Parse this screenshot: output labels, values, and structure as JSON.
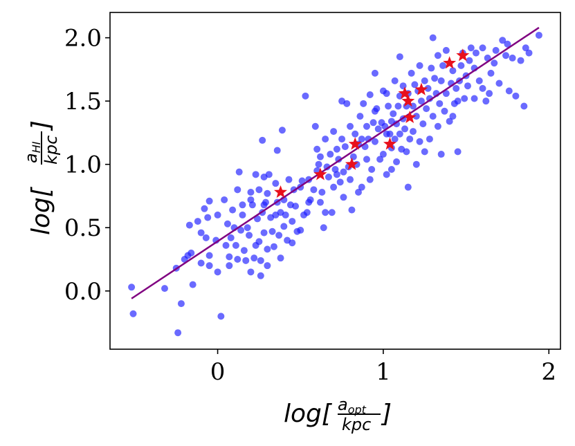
{
  "chart_data": {
    "type": "scatter",
    "title": "",
    "xlabel": {
      "prefix": "log[",
      "numerator": "a",
      "numerator_sub": "opt",
      "denominator": "kpc",
      "suffix": "]"
    },
    "ylabel": {
      "prefix": "log[",
      "numerator": "a",
      "numerator_sub": "HI",
      "denominator": "kpc",
      "suffix": "]"
    },
    "xlim": [
      -0.65,
      2.07
    ],
    "ylim": [
      -0.46,
      2.2
    ],
    "xticks": [
      0,
      1,
      2
    ],
    "xtick_labels": [
      "0",
      "1",
      "2"
    ],
    "yticks": [
      0.0,
      0.5,
      1.0,
      1.5,
      2.0
    ],
    "ytick_labels": [
      "0.0",
      "0.5",
      "1.0",
      "1.5",
      "2.0"
    ],
    "grid": false,
    "fit_line": {
      "color": "#800080",
      "x": [
        -0.52,
        1.94
      ],
      "y": [
        -0.06,
        2.08
      ]
    },
    "series": [
      {
        "marker": "circle",
        "color": "#1a1aff",
        "points": [
          [
            -0.52,
            0.03
          ],
          [
            -0.51,
            -0.18
          ],
          [
            -0.32,
            0.02
          ],
          [
            -0.25,
            0.18
          ],
          [
            -0.24,
            -0.33
          ],
          [
            -0.22,
            -0.1
          ],
          [
            -0.2,
            0.25
          ],
          [
            -0.18,
            0.28
          ],
          [
            -0.17,
            0.52
          ],
          [
            -0.16,
            0.3
          ],
          [
            -0.15,
            0.05
          ],
          [
            -0.12,
            0.55
          ],
          [
            -0.1,
            0.46
          ],
          [
            -0.08,
            0.65
          ],
          [
            -0.07,
            0.42
          ],
          [
            -0.06,
            0.58
          ],
          [
            -0.05,
            0.28
          ],
          [
            -0.05,
            0.71
          ],
          [
            -0.05,
            0.2
          ],
          [
            0.0,
            0.15
          ],
          [
            0.0,
            0.6
          ],
          [
            0.02,
            -0.2
          ],
          [
            0.04,
            0.72
          ],
          [
            0.05,
            0.36
          ],
          [
            0.06,
            0.53
          ],
          [
            0.07,
            0.27
          ],
          [
            0.07,
            0.2
          ],
          [
            0.08,
            0.42
          ],
          [
            0.09,
            0.64
          ],
          [
            0.1,
            0.5
          ],
          [
            0.11,
            0.36
          ],
          [
            0.12,
            0.8
          ],
          [
            0.12,
            0.25
          ],
          [
            0.13,
            0.94
          ],
          [
            0.14,
            0.48
          ],
          [
            0.15,
            0.6
          ],
          [
            0.16,
            0.32
          ],
          [
            0.17,
            0.24
          ],
          [
            0.18,
            0.5
          ],
          [
            0.19,
            0.44
          ],
          [
            0.2,
            0.72
          ],
          [
            0.2,
            0.15
          ],
          [
            0.21,
            0.68
          ],
          [
            0.22,
            0.26
          ],
          [
            0.23,
            0.92
          ],
          [
            0.23,
            0.36
          ],
          [
            0.24,
            0.57
          ],
          [
            0.25,
            0.8
          ],
          [
            0.25,
            0.39
          ],
          [
            0.26,
            0.24
          ],
          [
            0.26,
            0.12
          ],
          [
            0.27,
            1.19
          ],
          [
            0.27,
            0.62
          ],
          [
            0.28,
            0.9
          ],
          [
            0.28,
            0.46
          ],
          [
            0.29,
            0.7
          ],
          [
            0.3,
            0.33
          ],
          [
            0.3,
            0.77
          ],
          [
            0.31,
            0.92
          ],
          [
            0.32,
            0.58
          ],
          [
            0.33,
            0.47
          ],
          [
            0.34,
            0.35
          ],
          [
            0.35,
            0.6
          ],
          [
            0.35,
            0.85
          ],
          [
            0.36,
            0.7
          ],
          [
            0.36,
            1.11
          ],
          [
            0.37,
            0.44
          ],
          [
            0.38,
            0.26
          ],
          [
            0.39,
            1.27
          ],
          [
            0.4,
            0.51
          ],
          [
            0.4,
            0.72
          ],
          [
            0.41,
            0.6
          ],
          [
            0.42,
            0.4
          ],
          [
            0.43,
            0.88
          ],
          [
            0.44,
            0.68
          ],
          [
            0.45,
            0.55
          ],
          [
            0.46,
            0.8
          ],
          [
            0.47,
            0.67
          ],
          [
            0.48,
            0.47
          ],
          [
            0.5,
            0.82
          ],
          [
            0.51,
            0.87
          ],
          [
            0.52,
            0.6
          ],
          [
            0.53,
            1.54
          ],
          [
            0.54,
            0.62
          ],
          [
            0.55,
            0.88
          ],
          [
            0.56,
            0.72
          ],
          [
            0.58,
            0.8
          ],
          [
            0.59,
            1.3
          ],
          [
            0.6,
            0.95
          ],
          [
            0.61,
            1.0
          ],
          [
            0.62,
            1.06
          ],
          [
            0.62,
            0.7
          ],
          [
            0.63,
            0.78
          ],
          [
            0.64,
            0.5
          ],
          [
            0.65,
            1.2
          ],
          [
            0.66,
            0.98
          ],
          [
            0.67,
            0.9
          ],
          [
            0.68,
            1.08
          ],
          [
            0.69,
            0.62
          ],
          [
            0.7,
            1.26
          ],
          [
            0.7,
            0.82
          ],
          [
            0.71,
            0.96
          ],
          [
            0.72,
            1.12
          ],
          [
            0.73,
            1.04
          ],
          [
            0.74,
            0.86
          ],
          [
            0.75,
            1.2
          ],
          [
            0.76,
            0.74
          ],
          [
            0.76,
            0.94
          ],
          [
            0.77,
            1.14
          ],
          [
            0.78,
            1.48
          ],
          [
            0.79,
            0.98
          ],
          [
            0.8,
            0.88
          ],
          [
            0.8,
            1.3
          ],
          [
            0.81,
            0.64
          ],
          [
            0.82,
            1.06
          ],
          [
            0.83,
            1.24
          ],
          [
            0.84,
            1.0
          ],
          [
            0.85,
            1.16
          ],
          [
            0.86,
            1.38
          ],
          [
            0.87,
            0.82
          ],
          [
            0.88,
            1.48
          ],
          [
            0.89,
            1.14
          ],
          [
            0.9,
            1.3
          ],
          [
            0.9,
            1.04
          ],
          [
            0.91,
            1.2
          ],
          [
            0.92,
            1.55
          ],
          [
            0.93,
            0.96
          ],
          [
            0.94,
            1.33
          ],
          [
            0.95,
            1.42
          ],
          [
            0.95,
            1.18
          ],
          [
            0.96,
            1.44
          ],
          [
            0.97,
            1.28
          ],
          [
            0.98,
            1.04
          ],
          [
            0.99,
            1.33
          ],
          [
            1.0,
            1.08
          ],
          [
            1.0,
            1.58
          ],
          [
            1.01,
            1.3
          ],
          [
            1.02,
            1.24
          ],
          [
            1.02,
            0.92
          ],
          [
            1.03,
            1.46
          ],
          [
            1.04,
            1.24
          ],
          [
            1.05,
            1.34
          ],
          [
            1.05,
            1.13
          ],
          [
            1.06,
            1.4
          ],
          [
            1.07,
            1.66
          ],
          [
            1.07,
            1.2
          ],
          [
            1.08,
            1.32
          ],
          [
            1.08,
            1.02
          ],
          [
            1.09,
            1.46
          ],
          [
            1.1,
            1.24
          ],
          [
            1.1,
            1.54
          ],
          [
            1.11,
            1.12
          ],
          [
            1.12,
            1.36
          ],
          [
            1.12,
            1.62
          ],
          [
            1.13,
            1.28
          ],
          [
            1.14,
            1.46
          ],
          [
            1.14,
            1.1
          ],
          [
            1.15,
            1.56
          ],
          [
            1.16,
            1.2
          ],
          [
            1.17,
            1.72
          ],
          [
            1.18,
            1.46
          ],
          [
            1.18,
            1.26
          ],
          [
            1.19,
            1.63
          ],
          [
            1.2,
            1.38
          ],
          [
            1.21,
            1.58
          ],
          [
            1.22,
            1.78
          ],
          [
            1.22,
            1.18
          ],
          [
            1.23,
            1.5
          ],
          [
            1.24,
            1.32
          ],
          [
            1.25,
            1.66
          ],
          [
            1.26,
            1.44
          ],
          [
            1.27,
            1.6
          ],
          [
            1.28,
            1.2
          ],
          [
            1.28,
            1.52
          ],
          [
            1.29,
            1.76
          ],
          [
            1.3,
            1.38
          ],
          [
            1.31,
            1.68
          ],
          [
            1.32,
            1.56
          ],
          [
            1.33,
            1.3
          ],
          [
            1.33,
            1.86
          ],
          [
            1.34,
            1.48
          ],
          [
            1.35,
            1.66
          ],
          [
            1.36,
            1.78
          ],
          [
            1.37,
            1.42
          ],
          [
            1.38,
            1.56
          ],
          [
            1.38,
            1.9
          ],
          [
            1.4,
            1.34
          ],
          [
            1.41,
            1.64
          ],
          [
            1.42,
            1.74
          ],
          [
            1.43,
            1.48
          ],
          [
            1.44,
            1.6
          ],
          [
            1.45,
            1.1
          ],
          [
            1.46,
            1.66
          ],
          [
            1.47,
            1.78
          ],
          [
            1.48,
            1.88
          ],
          [
            1.49,
            1.52
          ],
          [
            1.5,
            1.7
          ],
          [
            1.51,
            1.62
          ],
          [
            1.52,
            1.82
          ],
          [
            1.53,
            1.92
          ],
          [
            1.55,
            1.76
          ],
          [
            1.56,
            1.88
          ],
          [
            1.58,
            1.66
          ],
          [
            1.6,
            1.92
          ],
          [
            1.62,
            1.5
          ],
          [
            1.63,
            1.84
          ],
          [
            1.64,
            1.56
          ],
          [
            1.65,
            1.72
          ],
          [
            1.67,
            1.8
          ],
          [
            1.68,
            1.9
          ],
          [
            1.7,
            1.64
          ],
          [
            1.72,
            1.98
          ],
          [
            1.74,
            1.86
          ],
          [
            1.75,
            1.95
          ],
          [
            1.76,
            1.58
          ],
          [
            1.78,
            1.84
          ],
          [
            1.8,
            1.54
          ],
          [
            1.83,
            1.82
          ],
          [
            1.85,
            1.46
          ],
          [
            1.86,
            1.92
          ],
          [
            1.88,
            1.88
          ],
          [
            1.94,
            2.02
          ],
          [
            1.3,
            2.0
          ],
          [
            1.1,
            1.85
          ],
          [
            0.95,
            1.72
          ],
          [
            0.2,
            0.78
          ],
          [
            -0.01,
            0.4
          ],
          [
            0.55,
            0.7
          ],
          [
            0.65,
            0.62
          ],
          [
            0.85,
            0.78
          ],
          [
            1.05,
            0.96
          ],
          [
            1.15,
            0.82
          ],
          [
            1.35,
            1.08
          ],
          [
            0.45,
            0.38
          ],
          [
            0.3,
            0.2
          ],
          [
            0.15,
            0.68
          ],
          [
            -0.1,
            0.22
          ],
          [
            0.6,
            1.12
          ],
          [
            0.75,
            1.5
          ],
          [
            1.25,
            1.1
          ],
          [
            1.45,
            1.5
          ],
          [
            1.6,
            1.6
          ],
          [
            0.92,
            0.88
          ],
          [
            1.02,
            1.56
          ],
          [
            0.38,
            0.62
          ],
          [
            0.5,
            0.48
          ],
          [
            0.72,
            0.92
          ],
          [
            1.42,
            1.38
          ],
          [
            1.55,
            1.52
          ],
          [
            1.2,
            1.0
          ],
          [
            0.87,
            1.2
          ],
          [
            0.28,
            0.68
          ]
        ]
      },
      {
        "marker": "star",
        "color": "#e8101c",
        "points": [
          [
            0.38,
            0.78
          ],
          [
            0.62,
            0.92
          ],
          [
            0.81,
            1.0
          ],
          [
            0.83,
            1.16
          ],
          [
            1.04,
            1.16
          ],
          [
            1.13,
            1.56
          ],
          [
            1.15,
            1.5
          ],
          [
            1.16,
            1.37
          ],
          [
            1.23,
            1.59
          ],
          [
            1.4,
            1.8
          ],
          [
            1.48,
            1.86
          ]
        ]
      }
    ]
  }
}
